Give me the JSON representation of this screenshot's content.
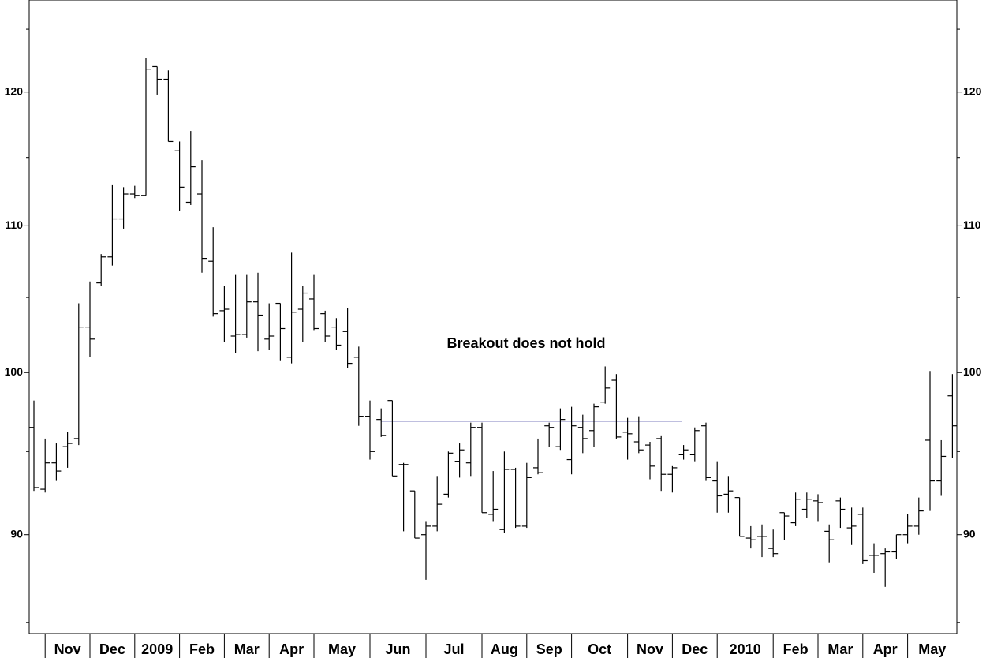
{
  "chart_data": {
    "type": "ohlc",
    "annotation": "Breakout does not hold",
    "annotation_color": "#0000cc",
    "color": "#000000",
    "log_scale": true,
    "ylim": [
      84.4,
      127.4
    ],
    "yticks": [
      90,
      100,
      110,
      120
    ],
    "minor_yticks": [
      85,
      95,
      105,
      115,
      125
    ],
    "reference_line": {
      "value": 96.9,
      "color": "#000080"
    },
    "categories": [
      null,
      "Nov",
      null,
      null,
      null,
      "Dec",
      null,
      null,
      null,
      "2009",
      null,
      null,
      null,
      "Feb",
      null,
      null,
      null,
      "Mar",
      null,
      null,
      null,
      "Apr",
      null,
      null,
      null,
      "May",
      null,
      null,
      null,
      null,
      "Jun",
      null,
      null,
      null,
      null,
      "Jul",
      null,
      null,
      null,
      null,
      "Aug",
      null,
      null,
      null,
      "Sep",
      null,
      null,
      null,
      "Oct",
      null,
      null,
      null,
      null,
      "Nov",
      null,
      null,
      null,
      "Dec",
      null,
      null,
      null,
      "2010",
      null,
      null,
      null,
      null,
      "Feb",
      null,
      null,
      null,
      "Mar",
      null,
      null,
      null,
      "Apr",
      null,
      null,
      null,
      "May",
      null,
      null,
      null,
      null
    ],
    "open": [
      96.5,
      92.7,
      94.3,
      95.3,
      95.8,
      103.0,
      106.0,
      107.8,
      110.5,
      112.3,
      112.2,
      122.0,
      121.0,
      115.5,
      111.7,
      112.3,
      107.5,
      104.1,
      102.4,
      102.5,
      104.7,
      102.2,
      104.6,
      101.0,
      104.2,
      104.9,
      103.9,
      103.0,
      102.7,
      101.0,
      97.2,
      97.0,
      98.2,
      94.2,
      92.6,
      90.0,
      90.5,
      92.4,
      94.4,
      94.3,
      96.5,
      91.2,
      90.3,
      93.9,
      90.5,
      94.0,
      96.6,
      95.3,
      94.5,
      96.5,
      96.3,
      98.1,
      99.5,
      96.2,
      95.6,
      95.4,
      95.8,
      93.6,
      94.8,
      94.8,
      96.6,
      93.2,
      92.4,
      92.2,
      89.8,
      89.9,
      89.2,
      91.3,
      90.7,
      91.5,
      92.0,
      90.2,
      92.0,
      90.4,
      91.2,
      88.8,
      88.9,
      89.0,
      90.0,
      90.5,
      95.7,
      93.2,
      98.5
    ],
    "high": [
      98.2,
      95.8,
      95.5,
      96.2,
      104.6,
      106.1,
      108.0,
      113.0,
      112.8,
      112.9,
      122.7,
      122.0,
      121.7,
      116.2,
      117.0,
      114.8,
      109.9,
      105.8,
      106.6,
      106.6,
      106.7,
      104.6,
      104.6,
      108.1,
      105.8,
      106.6,
      104.1,
      103.6,
      104.3,
      101.7,
      98.2,
      97.7,
      98.2,
      94.3,
      92.6,
      90.8,
      93.5,
      95.0,
      95.5,
      96.8,
      96.8,
      93.8,
      95.0,
      94.0,
      94.3,
      95.8,
      96.8,
      97.7,
      97.8,
      97.3,
      98.0,
      100.4,
      99.9,
      97.1,
      97.2,
      95.6,
      96.0,
      94.1,
      95.4,
      96.5,
      96.8,
      94.4,
      93.5,
      92.2,
      90.5,
      90.6,
      90.3,
      91.3,
      92.5,
      92.5,
      92.4,
      90.6,
      92.2,
      91.6,
      91.6,
      89.5,
      89.2,
      90.0,
      91.2,
      92.2,
      100.1,
      95.7,
      99.9
    ],
    "low": [
      92.6,
      92.5,
      93.2,
      94.0,
      95.4,
      101.0,
      105.8,
      107.2,
      109.8,
      112.0,
      112.2,
      119.8,
      116.2,
      111.1,
      111.5,
      106.7,
      103.7,
      102.0,
      101.3,
      102.3,
      101.4,
      101.5,
      100.8,
      100.6,
      102.0,
      102.8,
      102.0,
      101.5,
      100.3,
      96.6,
      94.5,
      95.9,
      93.5,
      90.2,
      89.8,
      87.4,
      90.2,
      92.2,
      93.4,
      93.5,
      91.3,
      90.8,
      90.1,
      90.4,
      90.4,
      93.6,
      95.3,
      95.1,
      93.6,
      94.9,
      95.3,
      98.0,
      95.8,
      94.5,
      94.9,
      93.3,
      92.6,
      92.5,
      94.5,
      94.4,
      93.2,
      91.3,
      91.3,
      89.9,
      89.2,
      88.7,
      88.7,
      89.7,
      90.5,
      91.0,
      90.8,
      88.4,
      90.4,
      89.4,
      88.3,
      87.8,
      87.0,
      88.6,
      89.5,
      90.0,
      91.4,
      92.3,
      94.6
    ],
    "close": [
      92.8,
      94.3,
      93.8,
      95.5,
      103.0,
      102.2,
      107.8,
      110.5,
      112.3,
      112.2,
      121.8,
      121.0,
      116.2,
      112.8,
      114.3,
      107.7,
      103.9,
      104.2,
      102.5,
      104.7,
      103.8,
      102.4,
      102.9,
      104.0,
      105.3,
      102.9,
      102.4,
      101.8,
      100.6,
      97.2,
      95.0,
      96.0,
      93.5,
      94.2,
      89.8,
      90.5,
      91.8,
      94.9,
      95.1,
      96.5,
      91.3,
      91.5,
      93.9,
      90.5,
      93.4,
      93.7,
      96.5,
      97.0,
      96.6,
      95.8,
      97.8,
      99.0,
      95.9,
      96.1,
      95.1,
      94.1,
      93.6,
      94.0,
      95.1,
      96.3,
      93.4,
      92.3,
      92.6,
      89.9,
      89.7,
      89.9,
      88.9,
      91.1,
      92.1,
      92.1,
      91.9,
      89.7,
      91.5,
      90.5,
      88.5,
      88.8,
      89.0,
      90.0,
      90.5,
      91.4,
      93.2,
      94.7,
      96.6
    ]
  }
}
